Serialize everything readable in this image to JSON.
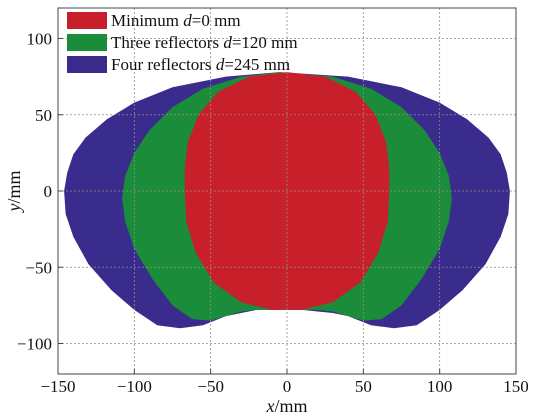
{
  "chart_data": {
    "type": "area",
    "title": "",
    "xlabel": "x/mm",
    "ylabel": "y/mm",
    "xlim": [
      -150,
      150
    ],
    "ylim": [
      -120,
      120
    ],
    "xticks": [
      -150,
      -100,
      -50,
      0,
      50,
      100,
      150
    ],
    "yticks": [
      -100,
      -50,
      0,
      50,
      100
    ],
    "grid": true,
    "legend": "top-left",
    "series": [
      {
        "name": "Four reflectors d=245 mm",
        "legend_parts": [
          "Four reflectors ",
          "d",
          "=245 mm"
        ],
        "color": "#3a2c8c",
        "x": [
          -5,
          40,
          75,
          100,
          118,
          132,
          140,
          144,
          146,
          145,
          140,
          130,
          115,
          100,
          85,
          70,
          55,
          40,
          30,
          20,
          10,
          0,
          -10,
          -20,
          -30,
          -40,
          -55,
          -70,
          -85,
          -100,
          -115,
          -130,
          -140,
          -145,
          -146,
          -144,
          -140,
          -132,
          -118,
          -100,
          -75,
          -40
        ],
        "y": [
          78,
          75,
          68,
          58,
          47,
          35,
          24,
          12,
          0,
          -15,
          -30,
          -48,
          -65,
          -78,
          -88,
          -90,
          -88,
          -82,
          -80,
          -79,
          -78,
          -78,
          -78,
          -78,
          -80,
          -82,
          -88,
          -90,
          -88,
          -78,
          -65,
          -48,
          -30,
          -15,
          0,
          12,
          24,
          35,
          47,
          58,
          68,
          75
        ]
      },
      {
        "name": "Three reflectors d=120 mm",
        "legend_parts": [
          "Three reflectors ",
          "d",
          "=120 mm"
        ],
        "color": "#1a8c3a",
        "x": [
          -5,
          30,
          55,
          75,
          90,
          100,
          106,
          108,
          106,
          100,
          88,
          75,
          62,
          50,
          40,
          30,
          20,
          10,
          0,
          -10,
          -20,
          -30,
          -40,
          -50,
          -62,
          -75,
          -88,
          -100,
          -106,
          -108,
          -106,
          -100,
          -90,
          -75,
          -55,
          -30
        ],
        "y": [
          78,
          75,
          67,
          55,
          40,
          25,
          10,
          -5,
          -20,
          -38,
          -58,
          -75,
          -84,
          -85,
          -82,
          -79,
          -78,
          -78,
          -78,
          -78,
          -78,
          -79,
          -82,
          -85,
          -84,
          -75,
          -58,
          -38,
          -20,
          -5,
          10,
          25,
          40,
          55,
          67,
          75
        ]
      },
      {
        "name": "Minimum d=0 mm",
        "legend_parts": [
          "Minimum ",
          "d",
          "=0 mm"
        ],
        "color": "#c8202a",
        "x": [
          0,
          25,
          45,
          58,
          65,
          67,
          67,
          66,
          60,
          48,
          30,
          10,
          -10,
          -30,
          -48,
          -60,
          -66,
          -67,
          -67,
          -65,
          -58,
          -45,
          -25
        ],
        "y": [
          78,
          75,
          65,
          50,
          32,
          15,
          0,
          -20,
          -40,
          -60,
          -73,
          -78,
          -78,
          -73,
          -60,
          -40,
          -20,
          0,
          15,
          32,
          50,
          65,
          75
        ]
      }
    ]
  }
}
